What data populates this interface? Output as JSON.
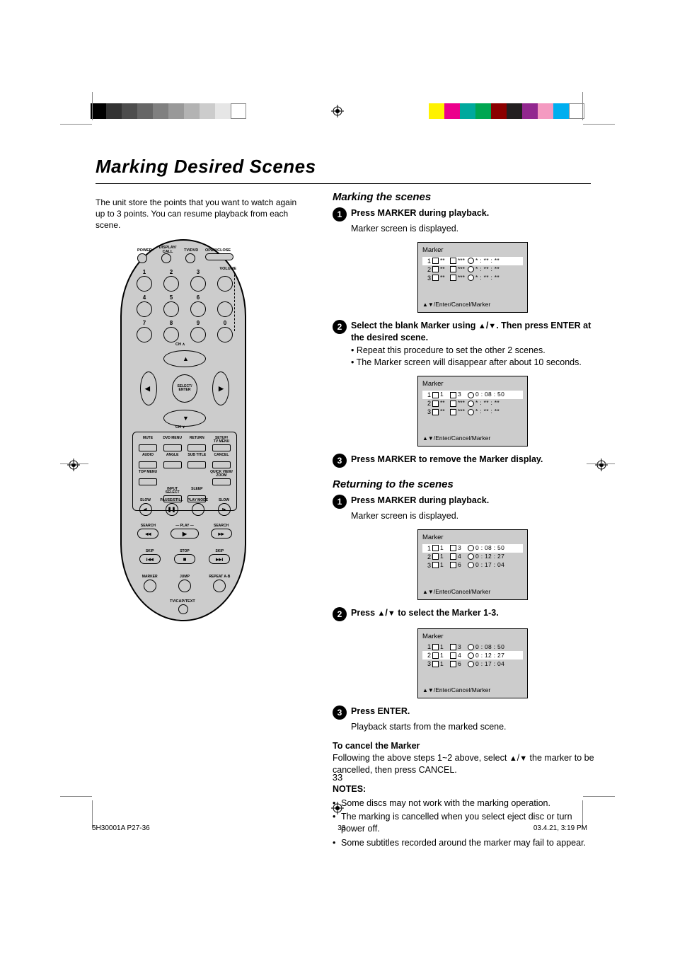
{
  "page": {
    "title": "Marking Desired Scenes",
    "intro": "The unit store the points that you want to watch again up to 3 points. You can resume playback from each scene.",
    "page_number": "33",
    "footer_file": "5H30001A  P27-36",
    "footer_page": "33",
    "footer_date": "03.4.21, 3:19 PM"
  },
  "colorbar": {
    "grays": [
      "#000000",
      "#333333",
      "#4d4d4d",
      "#666666",
      "#808080",
      "#999999",
      "#b3b3b3",
      "#cccccc",
      "#e6e6e6",
      "#ffffff"
    ],
    "colors": [
      "#fff200",
      "#ec008c",
      "#00a99d",
      "#00a651",
      "#8b0000",
      "#231f20",
      "#92278f",
      "#f49ac1",
      "#00aeef",
      "#ffffff"
    ]
  },
  "section_marking": {
    "heading": "Marking the scenes",
    "step1": {
      "num": "1",
      "text": "Press MARKER during playback.",
      "sub": "Marker screen is displayed."
    },
    "step2": {
      "num": "2",
      "text_a": "Select the blank Marker using ",
      "text_b": ". Then press ENTER at the desired scene.",
      "sub_a": "Repeat this procedure to set the other 2 scenes.",
      "sub_dot": "•",
      "sub_b": "The Marker screen will disappear after about 10 seconds.",
      "tri_up": "▲",
      "tri_dn": "▼"
    },
    "step3": {
      "num": "3",
      "text": "Press MARKER to remove the Marker display."
    }
  },
  "section_return": {
    "heading": "Returning to the scenes",
    "step1": {
      "num": "1",
      "text": "Press MARKER during playback.",
      "sub": "Marker screen is displayed."
    },
    "step2": {
      "num": "2",
      "text_a": "Press ",
      "text_b": " to select the Marker 1-3.",
      "tri_up": "▲",
      "tri_dn": "▼"
    },
    "step3": {
      "num": "3",
      "text": "Press ENTER.",
      "sub": "Playback starts from the marked scene."
    }
  },
  "cancel": {
    "heading": "To cancel the Marker",
    "text_a": "Following the above steps 1~2 above, select ",
    "text_b": " the marker to be cancelled, then press CANCEL.",
    "tri_up": "▲",
    "tri_dn": "▼"
  },
  "notes": {
    "heading": "NOTES:",
    "n1": "Some discs may not work with the marking operation.",
    "n2": "The marking is cancelled when you select eject disc or turn power off.",
    "n3": "Some subtitles recorded around the marker may fail to appear."
  },
  "marker_screens": {
    "title": "Marker",
    "footer": "/Enter/Cancel/Marker",
    "tri_up": "▲",
    "tri_dn": "▼",
    "s1": {
      "rows": [
        {
          "n": "1",
          "t": "**",
          "c": "***",
          "tm": "* : ** : **",
          "hl": true
        },
        {
          "n": "2",
          "t": "**",
          "c": "***",
          "tm": "* : ** : **"
        },
        {
          "n": "3",
          "t": "**",
          "c": "***",
          "tm": "* : ** : **"
        }
      ]
    },
    "s2": {
      "rows": [
        {
          "n": "1",
          "t": "1",
          "c": "3",
          "tm": "0 : 08 : 50",
          "hl": true
        },
        {
          "n": "2",
          "t": "**",
          "c": "***",
          "tm": "* : ** : **"
        },
        {
          "n": "3",
          "t": "**",
          "c": "***",
          "tm": "* : ** : **"
        }
      ]
    },
    "s3": {
      "rows": [
        {
          "n": "1",
          "t": "1",
          "c": "3",
          "tm": "0 : 08 : 50",
          "hl": true
        },
        {
          "n": "2",
          "t": "1",
          "c": "4",
          "tm": "0 : 12 : 27"
        },
        {
          "n": "3",
          "t": "1",
          "c": "6",
          "tm": "0 : 17 : 04"
        }
      ]
    },
    "s4": {
      "rows": [
        {
          "n": "1",
          "t": "1",
          "c": "3",
          "tm": "0 : 08 : 50"
        },
        {
          "n": "2",
          "t": "1",
          "c": "4",
          "tm": "0 : 12 : 27",
          "hl": true
        },
        {
          "n": "3",
          "t": "1",
          "c": "6",
          "tm": "0 : 17 : 04"
        }
      ]
    }
  },
  "remote": {
    "top_row": {
      "power": "POWER",
      "display": "DISPLAY/\nCALL",
      "tvdvd": "TV/DVD",
      "open": "OPEN/CLOSE"
    },
    "nums": [
      "1",
      "2",
      "3",
      "4",
      "5",
      "6",
      "7",
      "8",
      "9",
      "0"
    ],
    "volume": "VOLUME",
    "ch_up": "CH ∧",
    "ch_dn": "CH ∨",
    "select": "SELECT/\nENTER",
    "mid": {
      "r1": [
        "MUTE",
        "DVD MENU",
        "RETURN",
        "SETUP/\nTV MENU"
      ],
      "r2": [
        "AUDIO",
        "ANGLE",
        "SUB TITLE",
        "CANCEL"
      ],
      "r3_left": "TOP MENU",
      "r3_right": "QUICK VIEW/\nZOOM",
      "r4": [
        "",
        "INPUT\nSELECT",
        "SLEEP",
        ""
      ]
    },
    "transport1": [
      "SLOW",
      "PAUSE/STILL",
      "PLAY MODE",
      "SLOW"
    ],
    "transport1_sym": [
      "◂ı",
      "❚❚",
      "",
      "ı▸"
    ],
    "search": {
      "left": "SEARCH",
      "center": "PLAY",
      "right": "SEARCH"
    },
    "search_sym": {
      "left": "◂◂",
      "center": "▶",
      "right": "▸▸"
    },
    "skip": {
      "left": "SKIP",
      "center": "STOP",
      "right": "SKIP"
    },
    "skip_sym": {
      "left": "ı◂◂",
      "center": "■",
      "right": "▸▸ı"
    },
    "bottom": {
      "marker": "MARKER",
      "jump": "JUMP",
      "repeat": "REPEAT A-B",
      "tvcap": "TV/CAP/TEXT"
    }
  }
}
